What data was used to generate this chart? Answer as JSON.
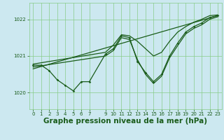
{
  "background_color": "#cce8f0",
  "plot_bg_color": "#cce8f0",
  "grid_color": "#88cc88",
  "line_color": "#1a5c1a",
  "xlabel": "Graphe pression niveau de la mer (hPa)",
  "xlabel_fontsize": 7.5,
  "xlim": [
    -0.5,
    23.5
  ],
  "ylim": [
    1019.55,
    1022.45
  ],
  "yticks": [
    1020,
    1021,
    1022
  ],
  "xticks": [
    0,
    1,
    2,
    3,
    4,
    5,
    6,
    7,
    9,
    10,
    11,
    12,
    13,
    14,
    15,
    16,
    17,
    18,
    19,
    20,
    21,
    22,
    23
  ],
  "main_data_x": [
    0,
    1,
    2,
    3,
    4,
    5,
    6,
    7,
    9,
    10,
    11,
    12,
    13,
    14,
    15,
    16,
    17,
    18,
    19,
    20,
    21,
    22,
    23
  ],
  "main_data_y": [
    1020.75,
    1020.75,
    1020.6,
    1020.35,
    1020.2,
    1020.05,
    1020.3,
    1020.3,
    1021.05,
    1021.2,
    1021.55,
    1021.5,
    1020.85,
    1020.55,
    1020.3,
    1020.5,
    1021.0,
    1021.35,
    1021.65,
    1021.8,
    1021.9,
    1022.05,
    1022.1
  ],
  "trend_x": [
    0,
    23
  ],
  "trend_y": [
    1020.65,
    1022.1
  ],
  "upper_x": [
    0,
    9,
    10,
    11,
    12,
    13,
    14,
    15,
    16,
    17,
    18,
    19,
    20,
    21,
    22,
    23
  ],
  "upper_y": [
    1020.78,
    1021.1,
    1021.3,
    1021.58,
    1021.55,
    1021.4,
    1021.2,
    1021.0,
    1021.1,
    1021.4,
    1021.65,
    1021.8,
    1021.92,
    1022.0,
    1022.1,
    1022.12
  ],
  "lower_x": [
    0,
    9,
    10,
    11,
    12,
    13,
    14,
    15,
    16,
    17,
    18,
    19,
    20,
    21,
    22,
    23
  ],
  "lower_y": [
    1020.7,
    1021.0,
    1021.15,
    1021.5,
    1021.45,
    1020.9,
    1020.5,
    1020.25,
    1020.45,
    1020.95,
    1021.28,
    1021.6,
    1021.75,
    1021.85,
    1022.0,
    1022.07
  ]
}
